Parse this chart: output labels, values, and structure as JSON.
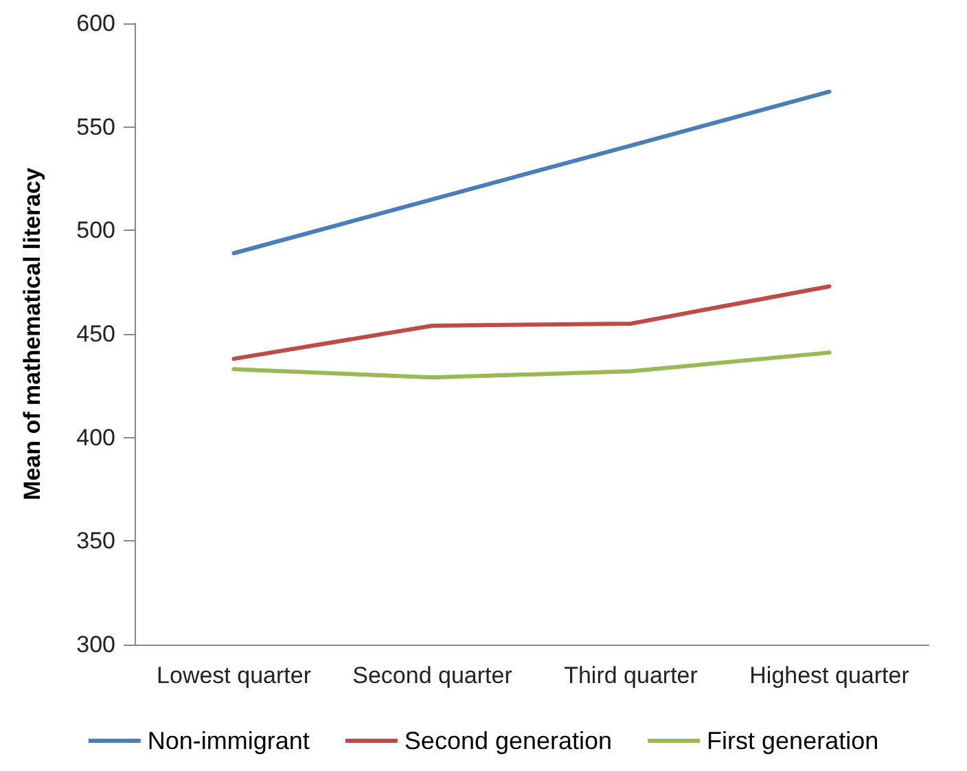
{
  "chart_data": {
    "type": "line",
    "ylabel": "Mean of mathematical literacy",
    "categories": [
      "Lowest quarter",
      "Second quarter",
      "Third quarter",
      "Highest quarter"
    ],
    "series": [
      {
        "name": "Non-immigrant",
        "color": "#4a7ebb",
        "values": [
          489,
          515,
          541,
          567
        ]
      },
      {
        "name": "Second generation",
        "color": "#be4b48",
        "values": [
          438,
          454,
          455,
          473
        ]
      },
      {
        "name": "First generation",
        "color": "#98b954",
        "values": [
          433,
          429,
          432,
          441
        ]
      }
    ],
    "ylim": [
      300,
      600
    ],
    "yticks": [
      300,
      350,
      400,
      450,
      500,
      550,
      600
    ],
    "grid": false,
    "legend": "bottom",
    "marker": "none",
    "line_style": "solid"
  }
}
